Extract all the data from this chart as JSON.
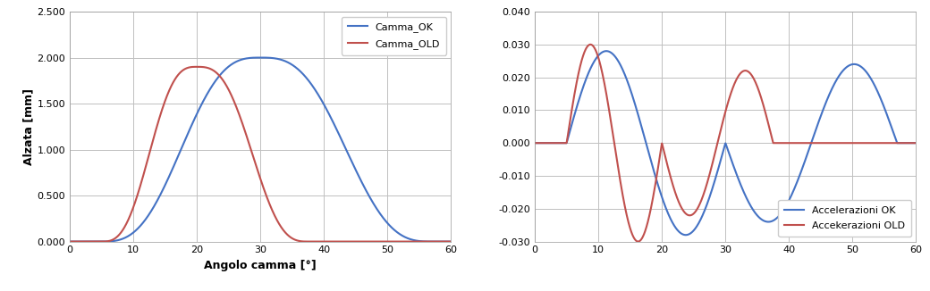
{
  "left_xlabel": "Angolo camma [°]",
  "left_ylabel": "Alzata [mm]",
  "left_xlim": [
    0,
    60
  ],
  "left_ylim": [
    0,
    2.5
  ],
  "left_yticks": [
    0.0,
    0.5,
    1.0,
    1.5,
    2.0,
    2.5
  ],
  "left_ytick_labels": [
    "0.000",
    "0.500",
    "1.000",
    "1.500",
    "2.000",
    "2.500"
  ],
  "left_xticks": [
    0,
    10,
    20,
    30,
    40,
    50,
    60
  ],
  "left_legend": [
    "Camma_OK",
    "Camma_OLD"
  ],
  "left_colors": [
    "#4472C4",
    "#C0504D"
  ],
  "right_xlim": [
    0,
    60
  ],
  "right_ylim": [
    -0.03,
    0.04
  ],
  "right_yticks": [
    -0.03,
    -0.02,
    -0.01,
    0.0,
    0.01,
    0.02,
    0.03,
    0.04
  ],
  "right_ytick_labels": [
    "-0.030",
    "-0.020",
    "-0.010",
    "0.000",
    "0.010",
    "0.020",
    "0.030",
    "0.040"
  ],
  "right_xticks": [
    0,
    10,
    20,
    30,
    40,
    50,
    60
  ],
  "right_legend": [
    "Accelerazioni OK",
    "Accekerazioni OLD"
  ],
  "right_colors": [
    "#4472C4",
    "#C0504D"
  ],
  "background_color": "#FFFFFF",
  "grid_color": "#C0C0C0"
}
